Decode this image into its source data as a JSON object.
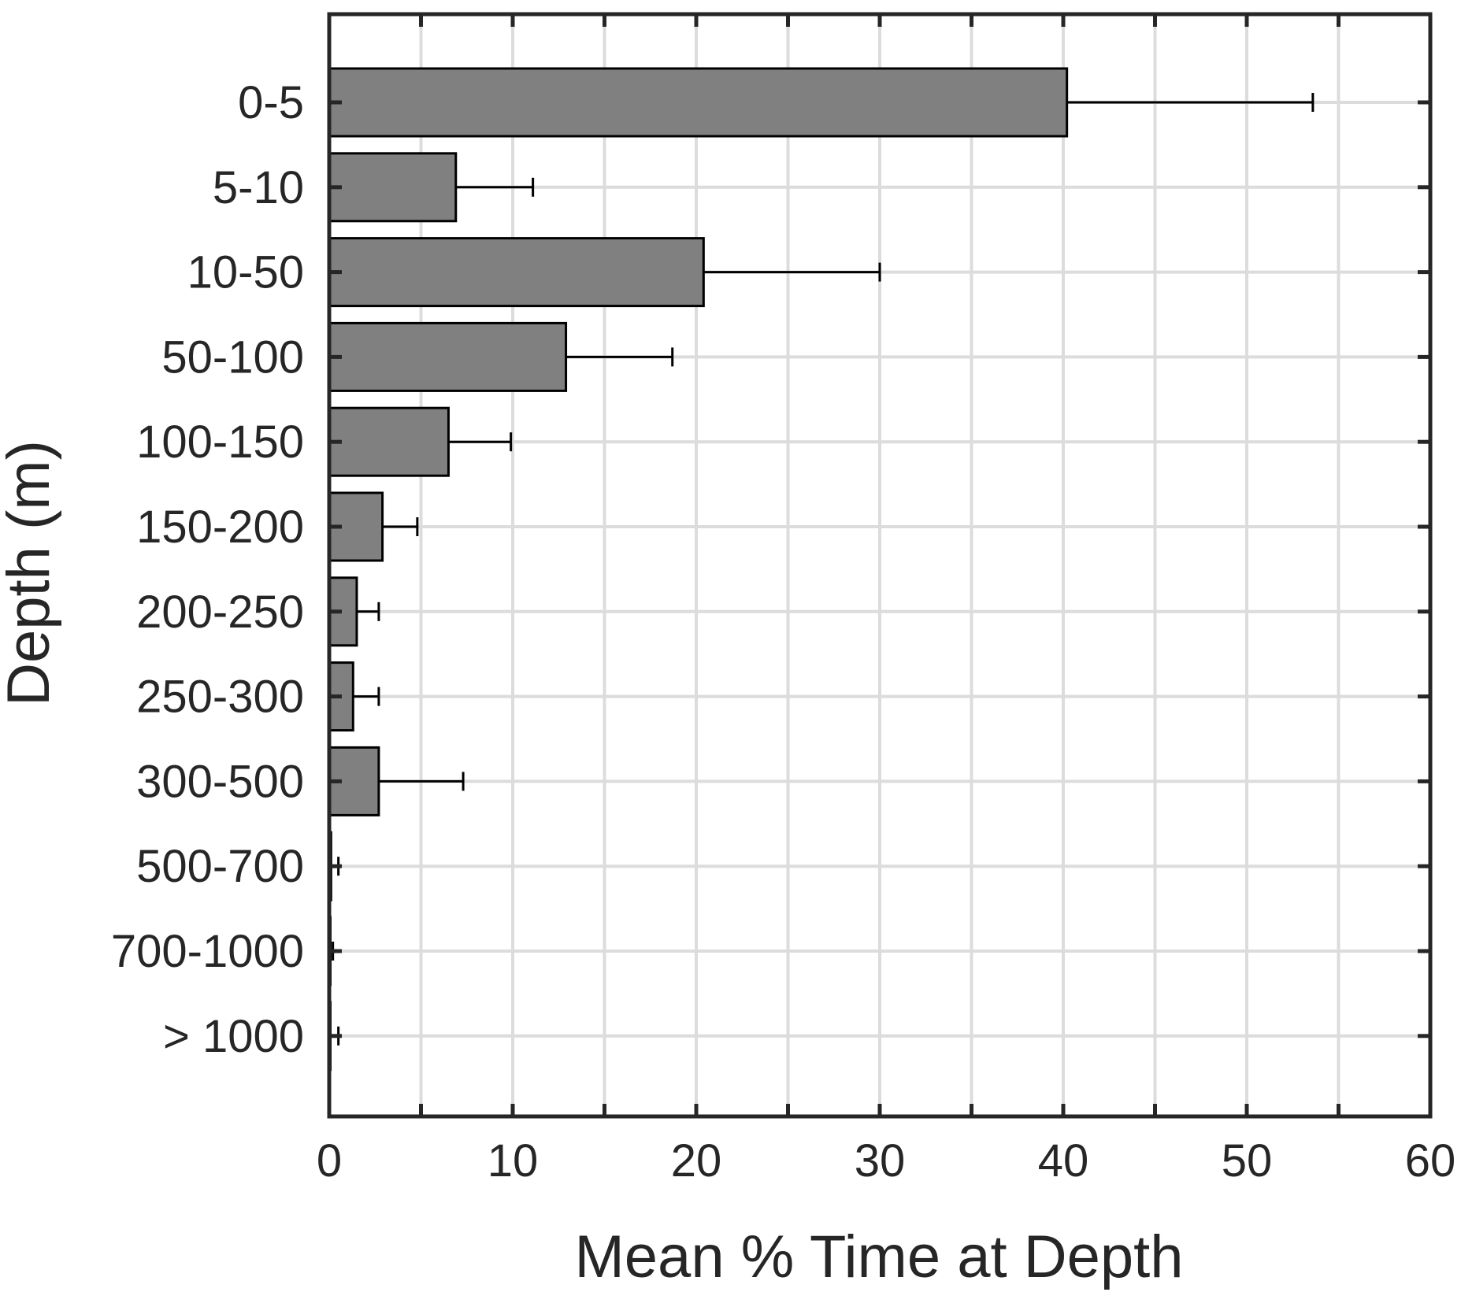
{
  "chart_data": {
    "type": "bar",
    "orientation": "horizontal",
    "title": "",
    "xlabel": "Mean % Time at Depth",
    "ylabel": "Depth (m)",
    "xlim": [
      0,
      60
    ],
    "x_ticks": [
      0,
      10,
      20,
      30,
      40,
      50,
      60
    ],
    "grid": true,
    "categories": [
      "0-5",
      "5-10",
      "10-50",
      "50-100",
      "100-150",
      "150-200",
      "200-250",
      "250-300",
      "300-500",
      "500-700",
      "700-1000",
      "> 1000"
    ],
    "values": [
      40.2,
      6.9,
      20.4,
      12.9,
      6.5,
      2.9,
      1.5,
      1.3,
      2.7,
      0.1,
      0.05,
      0.02
    ],
    "error_upper": [
      53.6,
      11.1,
      30.0,
      18.7,
      9.9,
      4.8,
      2.7,
      2.7,
      7.3,
      0.5,
      0.2,
      0.5
    ],
    "colors": {
      "bar_fill": "#808080",
      "bar_stroke": "#000000",
      "axis": "#262626",
      "grid": "#dcdcdc",
      "error_bar": "#000000"
    }
  }
}
